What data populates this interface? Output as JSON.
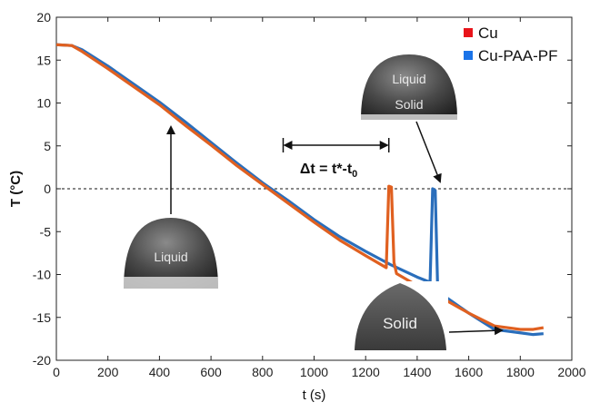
{
  "chart_data": {
    "type": "line",
    "title": "",
    "xlabel": "t (s)",
    "ylabel": "T (°C)",
    "xlim": [
      0,
      2000
    ],
    "ylim": [
      -20,
      20
    ],
    "x_ticks": [
      0,
      200,
      400,
      600,
      800,
      1000,
      1200,
      1400,
      1600,
      1800,
      2000
    ],
    "y_ticks": [
      -20,
      -15,
      -10,
      -5,
      0,
      5,
      10,
      15,
      20
    ],
    "grid": false,
    "legend_position": "top-right",
    "reference_line": {
      "y": 0,
      "style": "dashed"
    },
    "series": [
      {
        "name": "Cu",
        "color": "#e06020",
        "marker_color": "#e8141a",
        "x": [
          0,
          60,
          100,
          200,
          300,
          400,
          500,
          600,
          700,
          800,
          900,
          1000,
          1100,
          1200,
          1280,
          1290,
          1300,
          1310,
          1320,
          1400,
          1500,
          1600,
          1700,
          1750,
          1800,
          1850,
          1890
        ],
        "y": [
          16.8,
          16.7,
          16.0,
          14.0,
          11.9,
          9.8,
          7.4,
          5.1,
          2.7,
          0.5,
          -1.7,
          -3.9,
          -6.0,
          -7.8,
          -9.2,
          0.3,
          0.2,
          -8.6,
          -9.9,
          -11.3,
          -12.8,
          -14.5,
          -16.0,
          -16.2,
          -16.4,
          -16.4,
          -16.2
        ]
      },
      {
        "name": "Cu-PAA-PF",
        "color": "#2a6ebb",
        "marker_color": "#1a73e8",
        "x": [
          0,
          60,
          100,
          200,
          300,
          400,
          500,
          600,
          700,
          800,
          900,
          1000,
          1100,
          1200,
          1300,
          1400,
          1450,
          1460,
          1470,
          1480,
          1490,
          1500,
          1600,
          1700,
          1800,
          1850,
          1890
        ],
        "y": [
          16.8,
          16.7,
          16.2,
          14.3,
          12.2,
          10.1,
          7.8,
          5.4,
          3.0,
          0.7,
          -1.4,
          -3.6,
          -5.6,
          -7.3,
          -8.9,
          -10.3,
          -10.9,
          0.0,
          -0.2,
          -12.2,
          -12.3,
          -12.4,
          -14.5,
          -16.4,
          -16.8,
          -17.0,
          -16.9
        ]
      }
    ],
    "legend": [
      "Cu",
      "Cu-PAA-PF"
    ],
    "annotations": {
      "delta": "Δt = t*-t",
      "delta_sub": "0",
      "photo_liquid": "Liquid",
      "photo_mixed_top": "Liquid",
      "photo_mixed_bottom": "Solid",
      "photo_solid": "Solid"
    }
  }
}
